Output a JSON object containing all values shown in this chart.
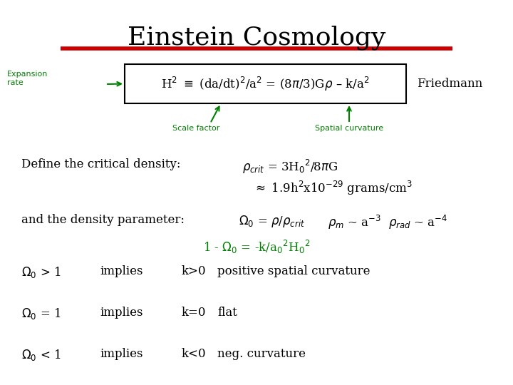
{
  "title": "Einstein Cosmology",
  "title_color": "#000000",
  "title_fontsize": 26,
  "red_line_color": "#cc0000",
  "green_color": "#008000",
  "black_color": "#000000",
  "bg_color": "#ffffff",
  "friedmann_box_text": "H$^2$ $\\equiv$ (da/dt)$^2$/a$^2$ = (8$\\pi$/3)G$\\rho$ – k/a$^2$",
  "friedmann_label": "Friedmann",
  "expansion_rate_label": "Expansion\nrate",
  "scale_factor_label": "Scale factor",
  "spatial_curvature_label": "Spatial curvature",
  "line1": "Define the critical density:",
  "line1b": "$\\rho_{crit}$ = 3H$_0$$^2$/8$\\pi$G",
  "line1c": "$\\approx$ 1.9h$^2$x10$^{-29}$ grams/cm$^3$",
  "line2": "and the density parameter:",
  "line2b": "$\\Omega_0$ = $\\rho$/$\\rho_{crit}$",
  "line2c": "$\\rho_m$ ~ a$^{-3}$",
  "line2d": "$\\rho_{rad}$ ~ a$^{-4}$",
  "line3": "1 - $\\Omega_0$ = -k/a$_0$$^2$H$_0$$^2$",
  "line4a": "$\\Omega_0$ > 1",
  "line4b": "implies",
  "line4c": "k>0",
  "line4d": "positive spatial curvature",
  "line5a": "$\\Omega_0$ = 1",
  "line5b": "implies",
  "line5c": "k=0",
  "line5d": "flat",
  "line6a": "$\\Omega_0$ < 1",
  "line6b": "implies",
  "line6c": "k<0",
  "line6d": "neg. curvature"
}
